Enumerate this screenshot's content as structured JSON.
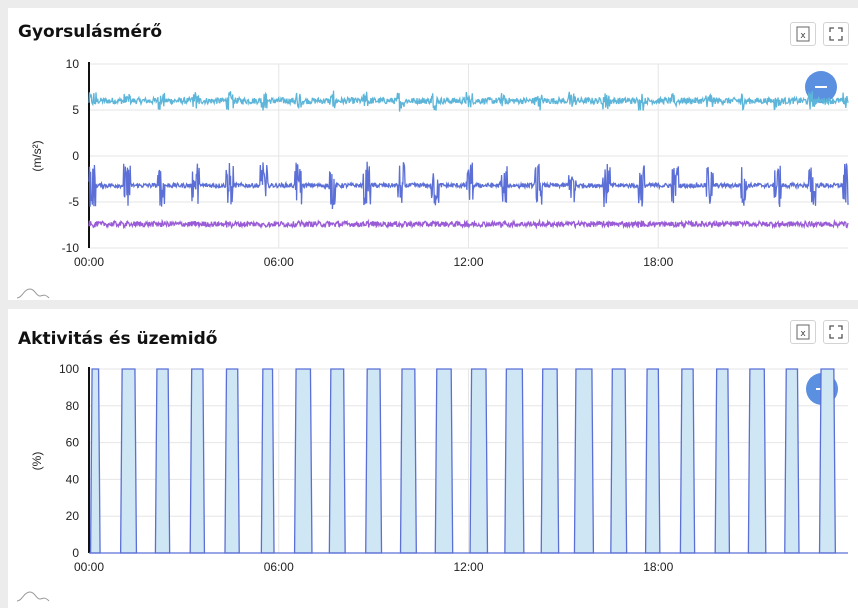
{
  "chart_data": [
    {
      "type": "line",
      "title": "Gyorsulásmérő",
      "ylabel": "(m/s²)",
      "xlabel": "",
      "ylim": [
        -10,
        10
      ],
      "yticks": [
        "10",
        "5",
        "0",
        "-5",
        "-10"
      ],
      "xticks": [
        "00:00",
        "06:00",
        "12:00",
        "18:00"
      ],
      "grid": true,
      "x_range_hours": [
        0,
        24
      ],
      "series": [
        {
          "color": "#5db6d9",
          "base": 6.0,
          "noise": 0.35,
          "burst": 0.7
        },
        {
          "color": "#5b6fd6",
          "base": -3.2,
          "noise": 0.25,
          "burst": 2.0
        },
        {
          "color": "#9a5cd6",
          "base": -7.4,
          "noise": 0.3,
          "burst": 0.1
        }
      ]
    },
    {
      "type": "area",
      "title": "Aktivitás és üzemidő",
      "ylabel": "(%)",
      "xlabel": "",
      "ylim": [
        0,
        100
      ],
      "yticks": [
        "100",
        "80",
        "60",
        "40",
        "20",
        "0"
      ],
      "xticks": [
        "00:00",
        "06:00",
        "12:00",
        "18:00"
      ],
      "grid": true,
      "x_range_hours": [
        0,
        24
      ],
      "series": [
        {
          "color": "#5b6fd6",
          "fill": "#cfe6f4",
          "on_intervals_hours": [
            [
              0.05,
              0.35
            ],
            [
              1.0,
              1.5
            ],
            [
              2.1,
              2.55
            ],
            [
              3.2,
              3.65
            ],
            [
              4.3,
              4.75
            ],
            [
              5.45,
              5.85
            ],
            [
              6.5,
              7.05
            ],
            [
              7.6,
              8.1
            ],
            [
              8.75,
              9.25
            ],
            [
              9.85,
              10.35
            ],
            [
              10.95,
              11.5
            ],
            [
              12.05,
              12.6
            ],
            [
              13.15,
              13.75
            ],
            [
              14.3,
              14.85
            ],
            [
              15.35,
              15.95
            ],
            [
              16.5,
              17.0
            ],
            [
              17.6,
              18.05
            ],
            [
              18.7,
              19.15
            ],
            [
              19.8,
              20.25
            ],
            [
              20.85,
              21.4
            ],
            [
              22.0,
              22.45
            ],
            [
              23.1,
              23.6
            ]
          ]
        }
      ]
    }
  ],
  "icons": {
    "export": "excel-export-icon",
    "fullscreen": "fullscreen-icon",
    "collapse": "minus-icon",
    "zoom": "zoom-navigator-icon"
  },
  "colors": {
    "accent": "#5b8fdf",
    "panel_background": "#ffffff",
    "page_background": "#ececec"
  }
}
